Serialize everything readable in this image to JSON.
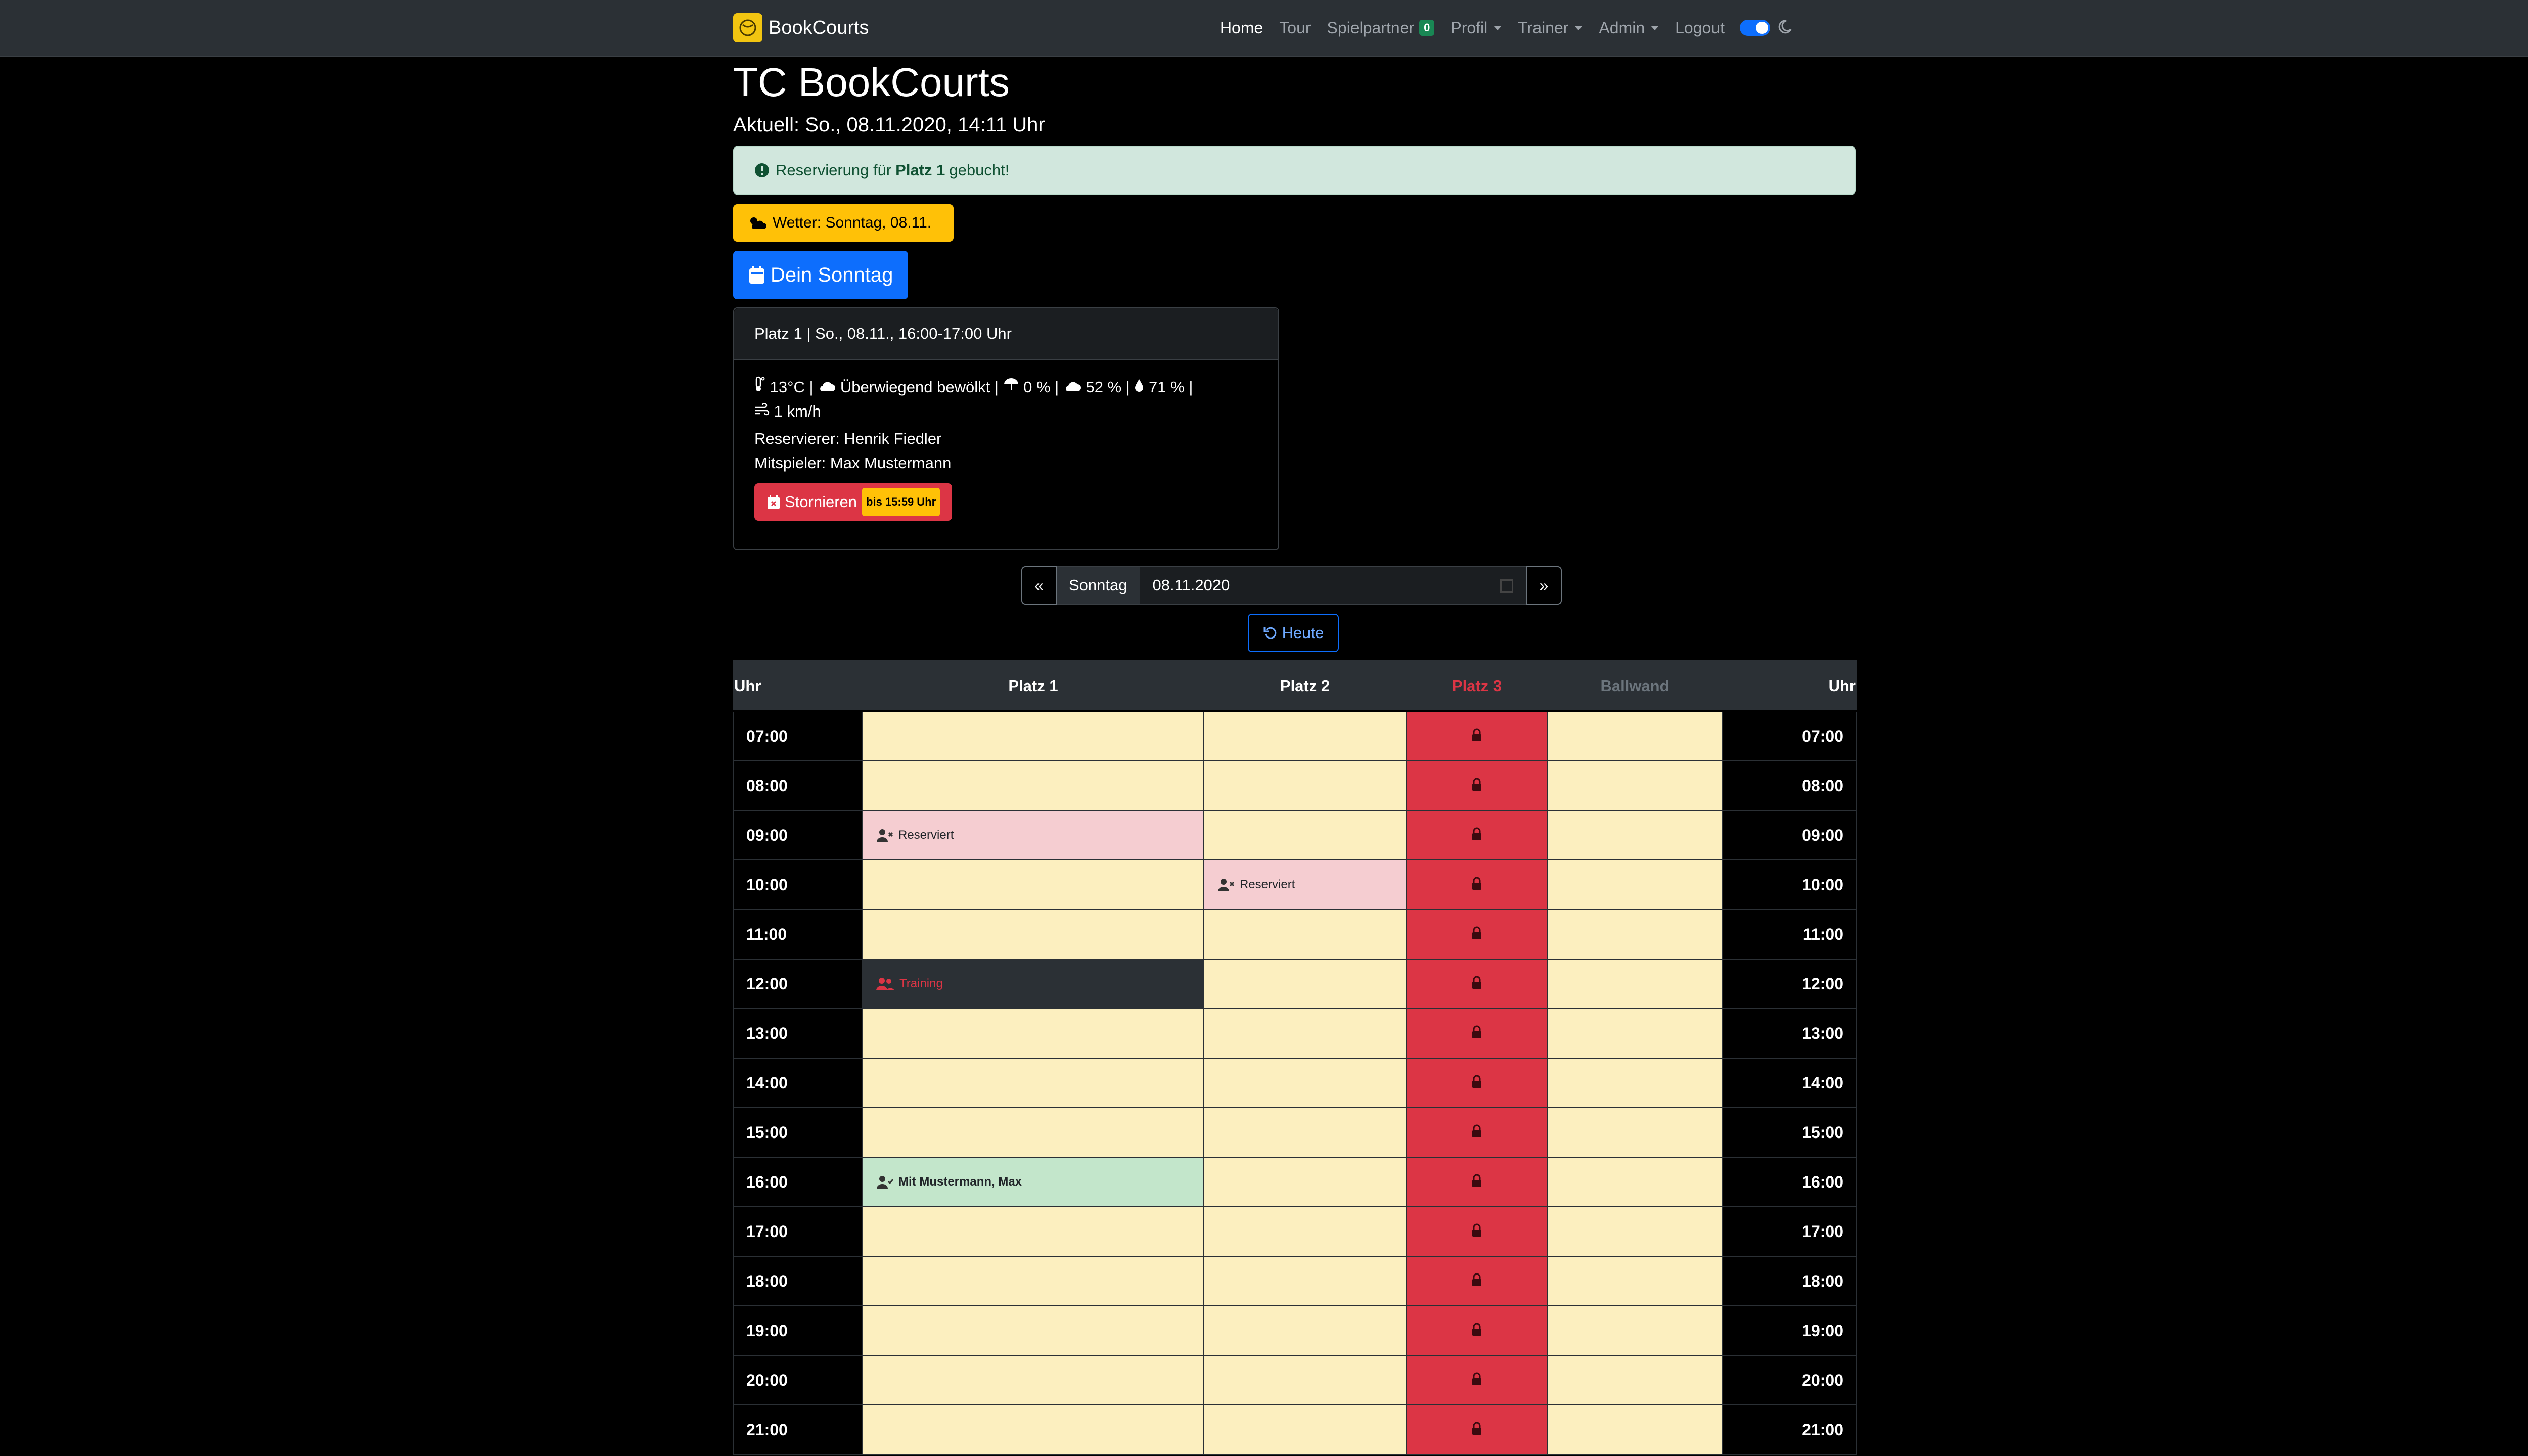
{
  "navbar": {
    "brand": "BookCourts",
    "items": [
      {
        "label": "Home"
      },
      {
        "label": "Tour"
      },
      {
        "label": "Spielpartner",
        "badge": "0"
      },
      {
        "label": "Profil"
      },
      {
        "label": "Trainer"
      },
      {
        "label": "Admin"
      },
      {
        "label": "Logout"
      }
    ]
  },
  "header": {
    "title": "TC BookCourts",
    "current": "Aktuell: So., 08.11.2020, 14:11 Uhr"
  },
  "alert": {
    "prefix": "Reservierung für",
    "court": "Platz 1",
    "suffix": "gebucht!"
  },
  "weather_button": "Wetter: Sonntag, 08.11.",
  "day_button": "Dein Sonntag",
  "booking": {
    "header": "Platz 1 | So., 08.11., 16:00-17:00 Uhr",
    "temp": "13°C |",
    "condition": "Überwiegend bewölkt |",
    "rain": "0 % |",
    "clouds": "52 % |",
    "humidity": "71 % |",
    "wind": "1 km/h",
    "reserver": "Reservierer: Henrik Fiedler",
    "partner": "Mitspieler: Max Mustermann",
    "cancel_label": "Stornieren",
    "cancel_deadline": "bis 15:59 Uhr"
  },
  "datepicker": {
    "prev": "«",
    "day": "Sonntag",
    "date": "08.11.2020",
    "next": "»",
    "today": "Heute"
  },
  "schedule": {
    "headers": [
      "Uhr",
      "Platz 1",
      "Platz 2",
      "Platz 3",
      "Ballwand",
      "Uhr"
    ],
    "times": [
      "07:00",
      "08:00",
      "09:00",
      "10:00",
      "11:00",
      "12:00",
      "13:00",
      "14:00",
      "15:00",
      "16:00",
      "17:00",
      "18:00",
      "19:00",
      "20:00",
      "21:00"
    ],
    "entries": {
      "reserved_p1_0900": "Reserviert",
      "reserved_p2_1000": "Reserviert",
      "training_p1_1200": "Training",
      "mine_p1_1600": "Mit Mustermann, Max"
    },
    "colors": {
      "free": "#fcefbf",
      "locked": "#dc3545",
      "reserved": "#f5cdd1",
      "training": "#2b3035",
      "own": "#c3e6cb"
    }
  }
}
